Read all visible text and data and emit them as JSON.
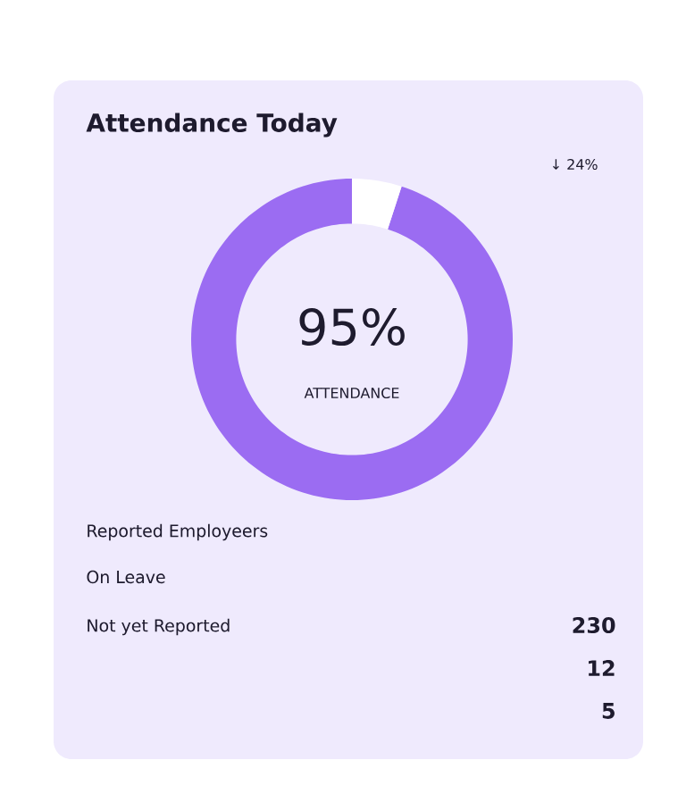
{
  "chart_data": {
    "type": "donut",
    "title": "Attendance Today",
    "categories": [
      null,
      null
    ],
    "values": [
      95,
      5
    ],
    "colors": [
      "#9b6cf2",
      "#ffffff"
    ],
    "annotations": [
      "↓ 24%",
      "95%",
      "ATTENDANCE",
      "Reported Employeers",
      "On Leave",
      "Not yet Reported",
      "230",
      "12",
      "5"
    ]
  }
}
